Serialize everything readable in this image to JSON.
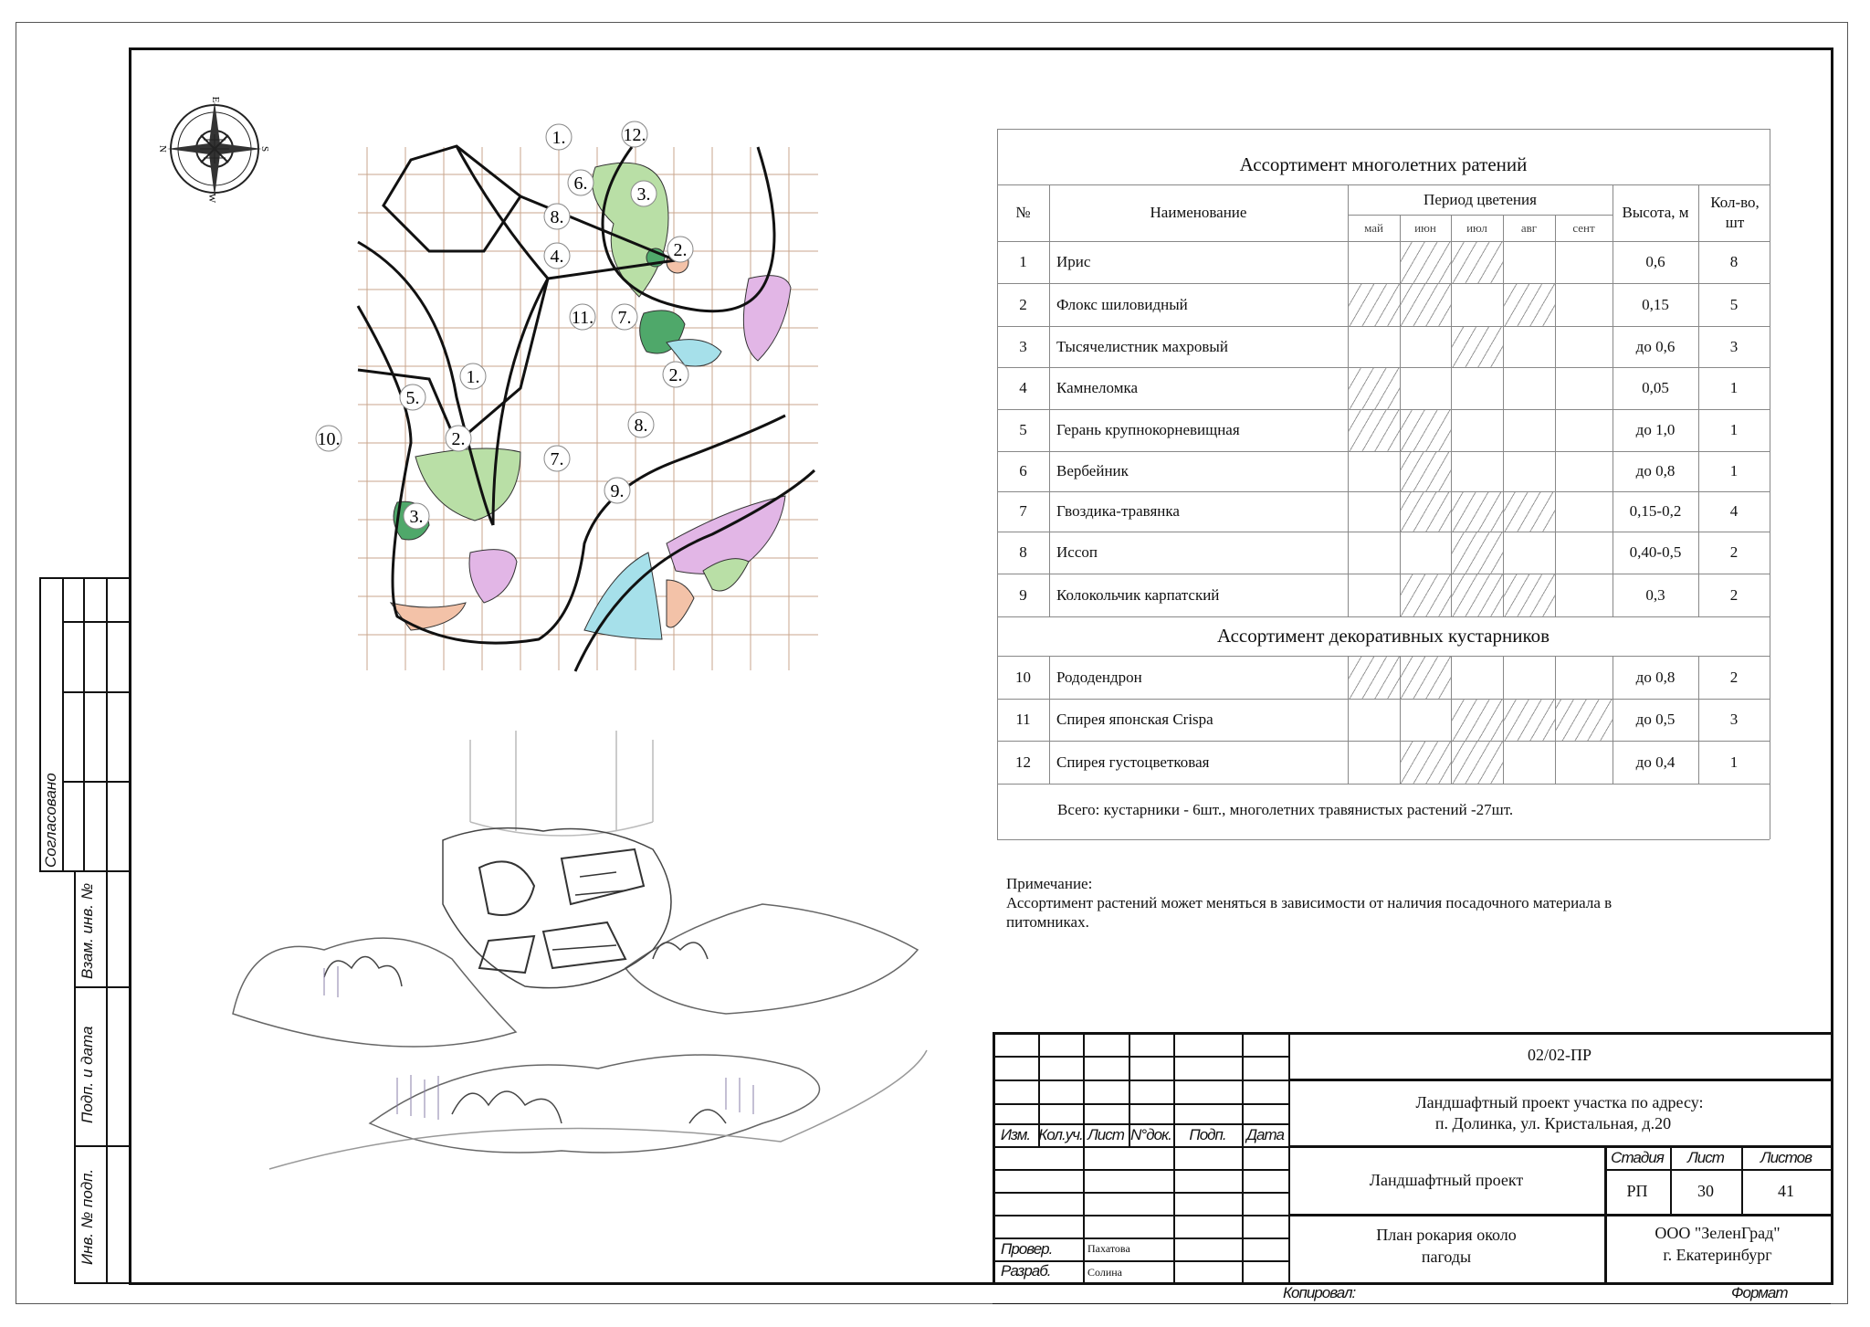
{
  "compass": {
    "n": "N",
    "s": "S",
    "e": "E",
    "w": "W"
  },
  "plan_labels": [
    "1.",
    "12.",
    "6.",
    "3.",
    "8.",
    "4.",
    "2.",
    "11.",
    "7.",
    "1.",
    "5.",
    "10.",
    "2.",
    "2.",
    "8.",
    "7.",
    "9.",
    "3."
  ],
  "plan_colors": {
    "green": "#b9dfa6",
    "dark_green": "#4fa86a",
    "pink": "#f3c2a8",
    "violet": "#e2b6e6",
    "cyan": "#a6e0ea",
    "grid": "#c9a58c"
  },
  "side_stamp": {
    "agreed": "Согласовано",
    "replace": "Взам. инв. №",
    "sign_date": "Подп. и дата",
    "inv": "Инв. № подп."
  },
  "table": {
    "title": "Ассортимент многолетних ратений",
    "headers": {
      "no": "№",
      "name": "Наименование",
      "period": "Период цветения",
      "height": "Высота, м",
      "qty": "Кол-во, шт"
    },
    "months": [
      "май",
      "июн",
      "июл",
      "авг",
      "сент"
    ],
    "rows": [
      {
        "no": "1",
        "name": "Ирис",
        "height": "0,6",
        "qty": "8",
        "bloom": [
          1,
          2
        ]
      },
      {
        "no": "2",
        "name": "Флокс шиловидный",
        "height": "0,15",
        "qty": "5",
        "bloom": [
          0,
          1,
          3
        ]
      },
      {
        "no": "3",
        "name": "Тысячелистник  махровый",
        "height": "до 0,6",
        "qty": "3",
        "bloom": [
          2
        ]
      },
      {
        "no": "4",
        "name": "Камнеломка",
        "height": "0,05",
        "qty": "1",
        "bloom": [
          0
        ]
      },
      {
        "no": "5",
        "name": "Герань крупнокорневищная",
        "height": "до 1,0",
        "qty": "1",
        "bloom": [
          0,
          1
        ]
      },
      {
        "no": "6",
        "name": "Вербейник",
        "height": "до 0,8",
        "qty": "1",
        "bloom": [
          1
        ]
      },
      {
        "no": "7",
        "name": "Гвоздика-травянка",
        "height": "0,15-0,2",
        "qty": "4",
        "bloom": [
          1,
          2,
          3
        ]
      },
      {
        "no": "8",
        "name": "Иссоп",
        "height": "0,40-0,5",
        "qty": "2",
        "bloom": [
          2
        ]
      },
      {
        "no": "9",
        "name": "Колокольчик карпатский",
        "height": "0,3",
        "qty": "2",
        "bloom": [
          1,
          2,
          3
        ]
      }
    ],
    "section2_title": "Ассортимент декоративных кустарников",
    "rows2": [
      {
        "no": "10",
        "name": "Рододендрон",
        "height": "до 0,8",
        "qty": "2",
        "bloom": [
          0,
          1
        ]
      },
      {
        "no": "11",
        "name": "Спирея японская  Crispa",
        "height": "до 0,5",
        "qty": "3",
        "bloom": [
          2,
          3,
          4
        ]
      },
      {
        "no": "12",
        "name": "Спирея густоцветковая",
        "height": "до 0,4",
        "qty": "1",
        "bloom": [
          1,
          2
        ]
      }
    ],
    "total": "Всего: кустарники - 6шт., многолетних травянистых  растений -27шт."
  },
  "note": {
    "title": "Примечание:",
    "line1": "Ассортимент растений может меняться в зависимости от наличия  посадочного материала в",
    "line2": "питомниках."
  },
  "stamp": {
    "code": "02/02-ПР",
    "address1": "Ландшафтный проект участка по адресу:",
    "address2": "п. Долинка, ул. Кристальная, д.20",
    "cols": [
      "Изм.",
      "Кол.уч.",
      "Лист",
      "N°док.",
      "Подп.",
      "Дата"
    ],
    "project": "Ландшафтный проект",
    "stage_label": "Стадия",
    "sheet_label": "Лист",
    "sheets_label": "Листов",
    "stage": "РП",
    "sheet": "30",
    "sheets": "41",
    "plan1": "План  рокария около",
    "plan2": "пагоды",
    "org1": "ООО \"ЗеленГрад\"",
    "org2": "г. Екатеринбург",
    "checked_label": "Провер.",
    "checked_name": "Пахатова",
    "dev_label": "Разраб.",
    "dev_name": "Солина",
    "copied": "Копировал:",
    "format": "Формат"
  }
}
